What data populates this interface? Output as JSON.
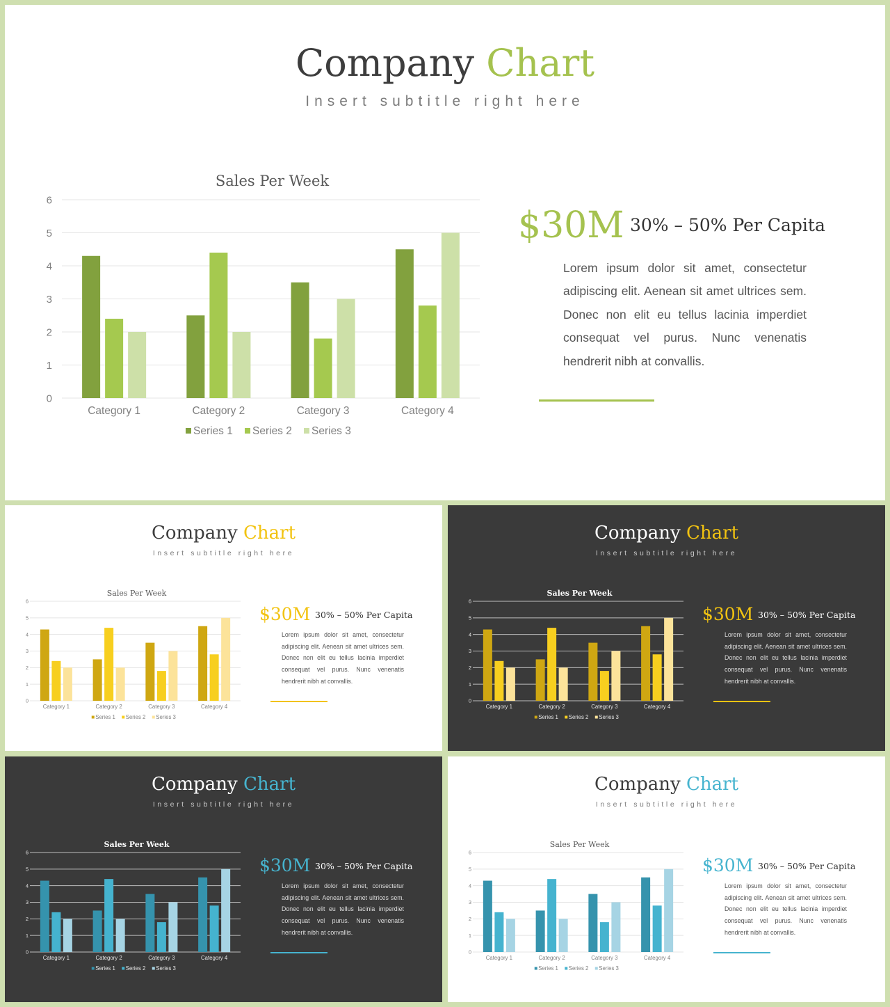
{
  "slides": [
    {
      "theme": "light",
      "title_main": "Company",
      "title_accent": "Chart",
      "subtitle": "Insert subtitle right here",
      "big_number": "$30M",
      "per_capita": "30% – 50% Per Capita",
      "body": "Lorem ipsum dolor sit amet, consectetur adipiscing elit. Aenean sit amet ultrices sem. Donec non elit eu tellus lacinia imperdiet consequat vel purus. Nunc venenatis hendrerit nibh at convallis.",
      "colors": {
        "accent": "#a5c24f",
        "series": [
          "#82a13e",
          "#a5c94f",
          "#cde0a8"
        ]
      },
      "chart_data": {
        "type": "bar",
        "title": "Sales Per Week",
        "categories": [
          "Category 1",
          "Category 2",
          "Category 3",
          "Category 4"
        ],
        "series": [
          {
            "name": "Series 1",
            "values": [
              4.3,
              2.5,
              3.5,
              4.5
            ]
          },
          {
            "name": "Series 2",
            "values": [
              2.4,
              4.4,
              1.8,
              2.8
            ]
          },
          {
            "name": "Series 3",
            "values": [
              2,
              2,
              3,
              5
            ]
          }
        ],
        "ylim": [
          0,
          6
        ],
        "yticks": [
          "0",
          "1",
          "2",
          "3",
          "4",
          "5",
          "6"
        ],
        "grid": true,
        "legend": "bottom"
      }
    },
    {
      "theme": "light",
      "title_main": "Company",
      "title_accent": "Chart",
      "subtitle": "Insert subtitle right here",
      "big_number": "$30M",
      "per_capita": "30% – 50% Per Capita",
      "body": "Lorem ipsum dolor sit amet, consectetur adipiscing elit. Aenean sit amet ultrices sem. Donec non elit eu tellus lacinia imperdiet consequat vel purus. Nunc venenatis hendrerit nibh at convallis.",
      "colors": {
        "accent": "#f2c311",
        "series": [
          "#cfa712",
          "#f7cf1f",
          "#fce39a"
        ]
      },
      "chart_data": {
        "type": "bar",
        "title": "Sales Per Week",
        "categories": [
          "Category 1",
          "Category 2",
          "Category 3",
          "Category 4"
        ],
        "series": [
          {
            "name": "Series 1",
            "values": [
              4.3,
              2.5,
              3.5,
              4.5
            ]
          },
          {
            "name": "Series 2",
            "values": [
              2.4,
              4.4,
              1.8,
              2.8
            ]
          },
          {
            "name": "Series 3",
            "values": [
              2,
              2,
              3,
              5
            ]
          }
        ],
        "ylim": [
          0,
          6
        ],
        "yticks": [
          "0",
          "1",
          "2",
          "3",
          "4",
          "5",
          "6"
        ],
        "grid": true,
        "legend": "bottom"
      }
    },
    {
      "theme": "dark",
      "title_main": "Company",
      "title_accent": "Chart",
      "subtitle": "Insert subtitle right here",
      "big_number": "$30M",
      "per_capita": "30% – 50% Per Capita",
      "body": "Lorem ipsum dolor sit amet, consectetur adipiscing elit. Aenean sit amet ultrices sem. Donec non elit eu tellus lacinia imperdiet consequat vel purus. Nunc venenatis hendrerit nibh at convallis.",
      "colors": {
        "accent": "#f2c311",
        "series": [
          "#cfa712",
          "#f7cf1f",
          "#fce39a"
        ]
      },
      "chart_data": {
        "type": "bar",
        "title": "Sales Per Week",
        "categories": [
          "Category 1",
          "Category 2",
          "Category 3",
          "Category 4"
        ],
        "series": [
          {
            "name": "Series 1",
            "values": [
              4.3,
              2.5,
              3.5,
              4.5
            ]
          },
          {
            "name": "Series 2",
            "values": [
              2.4,
              4.4,
              1.8,
              2.8
            ]
          },
          {
            "name": "Series 3",
            "values": [
              2,
              2,
              3,
              5
            ]
          }
        ],
        "ylim": [
          0,
          6
        ],
        "yticks": [
          "0",
          "1",
          "2",
          "3",
          "4",
          "5",
          "6"
        ],
        "grid": true,
        "legend": "bottom"
      }
    },
    {
      "theme": "dark",
      "title_main": "Company",
      "title_accent": "Chart",
      "subtitle": "Insert subtitle right here",
      "big_number": "$30M",
      "per_capita": "30% – 50% Per Capita",
      "body": "Lorem ipsum dolor sit amet, consectetur adipiscing elit. Aenean sit amet ultrices sem. Donec non elit eu tellus lacinia imperdiet consequat vel purus. Nunc venenatis hendrerit nibh at convallis.",
      "colors": {
        "accent": "#46b4cf",
        "series": [
          "#3593ad",
          "#45b3cf",
          "#a6d4e4"
        ]
      },
      "chart_data": {
        "type": "bar",
        "title": "Sales Per Week",
        "categories": [
          "Category 1",
          "Category 2",
          "Category 3",
          "Category 4"
        ],
        "series": [
          {
            "name": "Series 1",
            "values": [
              4.3,
              2.5,
              3.5,
              4.5
            ]
          },
          {
            "name": "Series 2",
            "values": [
              2.4,
              4.4,
              1.8,
              2.8
            ]
          },
          {
            "name": "Series 3",
            "values": [
              2,
              2,
              3,
              5
            ]
          }
        ],
        "ylim": [
          0,
          6
        ],
        "yticks": [
          "0",
          "1",
          "2",
          "3",
          "4",
          "5",
          "6"
        ],
        "grid": true,
        "legend": "bottom"
      }
    },
    {
      "theme": "light",
      "title_main": "Company",
      "title_accent": "Chart",
      "subtitle": "Insert subtitle right here",
      "big_number": "$30M",
      "per_capita": "30% – 50% Per Capita",
      "body": "Lorem ipsum dolor sit amet, consectetur adipiscing elit. Aenean sit amet ultrices sem. Donec non elit eu tellus lacinia imperdiet consequat vel purus. Nunc venenatis hendrerit nibh at convallis.",
      "colors": {
        "accent": "#46b4cf",
        "series": [
          "#3593ad",
          "#45b3cf",
          "#a6d4e4"
        ]
      },
      "chart_data": {
        "type": "bar",
        "title": "Sales Per Week",
        "categories": [
          "Category 1",
          "Category 2",
          "Category 3",
          "Category 4"
        ],
        "series": [
          {
            "name": "Series 1",
            "values": [
              4.3,
              2.5,
              3.5,
              4.5
            ]
          },
          {
            "name": "Series 2",
            "values": [
              2.4,
              4.4,
              1.8,
              2.8
            ]
          },
          {
            "name": "Series 3",
            "values": [
              2,
              2,
              3,
              5
            ]
          }
        ],
        "ylim": [
          0,
          6
        ],
        "yticks": [
          "0",
          "1",
          "2",
          "3",
          "4",
          "5",
          "6"
        ],
        "grid": true,
        "legend": "bottom"
      }
    }
  ]
}
